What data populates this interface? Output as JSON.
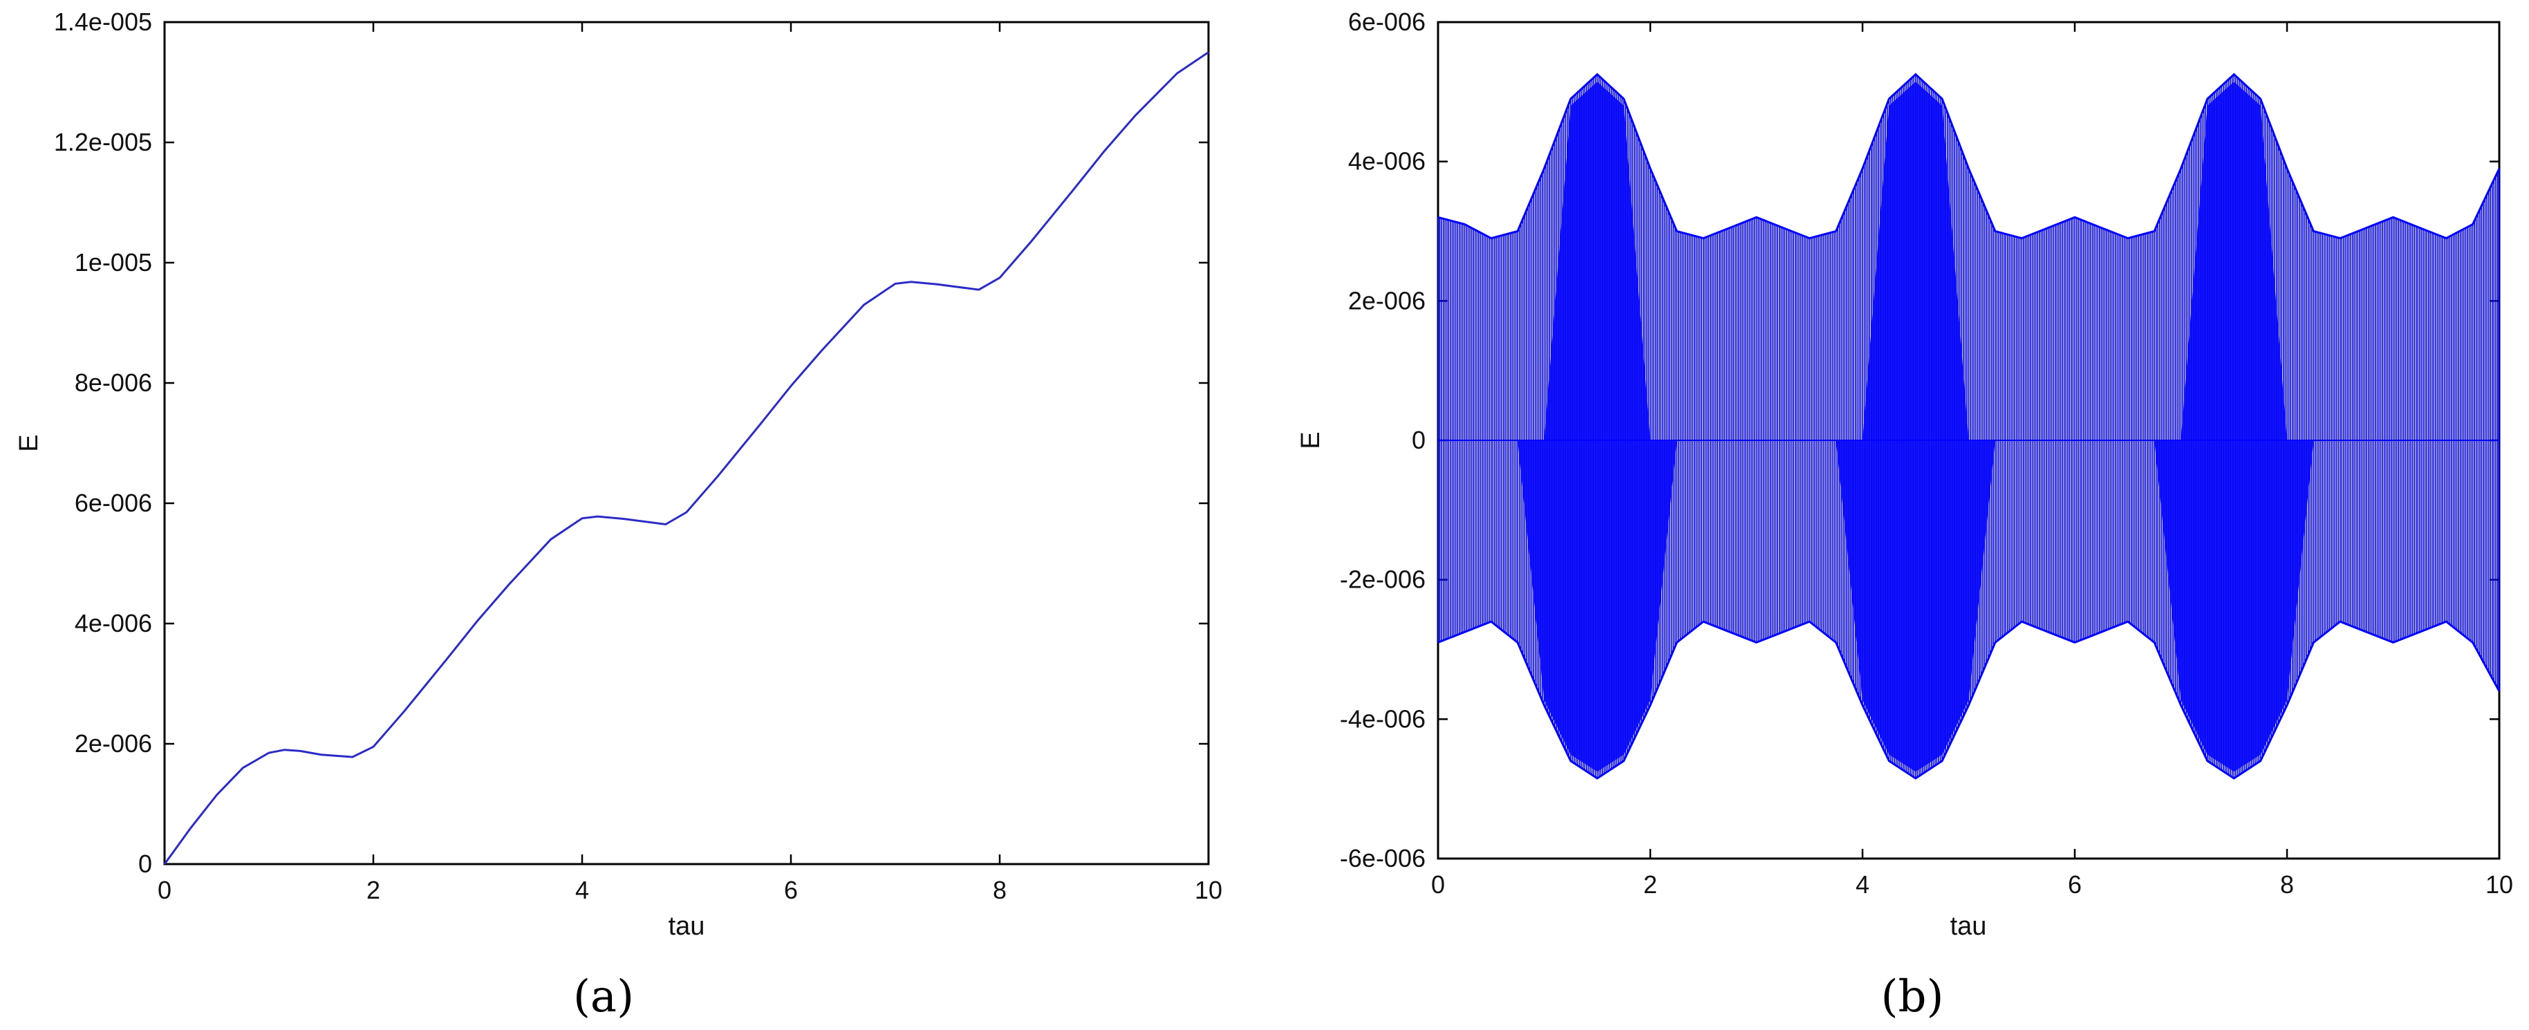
{
  "chart_data": [
    {
      "type": "line",
      "panel_label": "(a)",
      "xlabel": "tau",
      "ylabel": "E",
      "xlim": [
        0,
        10
      ],
      "ylim": [
        0,
        1.4e-05
      ],
      "x_ticks": [
        0,
        2,
        4,
        6,
        8,
        10
      ],
      "x_tick_labels": [
        "0",
        "2",
        "4",
        "6",
        "8",
        "10"
      ],
      "y_ticks": [
        0,
        2e-06,
        4e-06,
        6e-06,
        8e-06,
        1e-05,
        1.2e-05,
        1.4e-05
      ],
      "y_tick_labels": [
        "0",
        "2e-006",
        "4e-006",
        "6e-006",
        "8e-006",
        "1e-005",
        "1.2e-005",
        "1.4e-005"
      ],
      "grid": false,
      "color": "#2b2bc8",
      "series": [
        {
          "x": [
            0,
            0.25,
            0.5,
            0.75,
            1.0,
            1.15,
            1.3,
            1.5,
            1.8,
            2.0,
            2.3,
            2.7,
            3.0,
            3.3,
            3.7,
            4.0,
            4.15,
            4.4,
            4.8,
            5.0,
            5.3,
            5.7,
            6.0,
            6.3,
            6.7,
            7.0,
            7.15,
            7.4,
            7.8,
            8.0,
            8.3,
            8.7,
            9.0,
            9.3,
            9.7,
            10.0
          ],
          "y": [
            0,
            6e-07,
            1.15e-06,
            1.6e-06,
            1.85e-06,
            1.9e-06,
            1.88e-06,
            1.82e-06,
            1.78e-06,
            1.95e-06,
            2.55e-06,
            3.4e-06,
            4.05e-06,
            4.65e-06,
            5.4e-06,
            5.75e-06,
            5.78e-06,
            5.74e-06,
            5.65e-06,
            5.85e-06,
            6.45e-06,
            7.3e-06,
            7.95e-06,
            8.55e-06,
            9.3e-06,
            9.65e-06,
            9.68e-06,
            9.64e-06,
            9.55e-06,
            9.75e-06,
            1.035e-05,
            1.12e-05,
            1.185e-05,
            1.245e-05,
            1.315e-05,
            1.35e-05
          ]
        }
      ]
    },
    {
      "type": "line",
      "panel_label": "(b)",
      "xlabel": "tau",
      "ylabel": "E",
      "xlim": [
        0,
        10
      ],
      "ylim": [
        -6e-06,
        6e-06
      ],
      "x_ticks": [
        0,
        2,
        4,
        6,
        8,
        10
      ],
      "x_tick_labels": [
        "0",
        "2",
        "4",
        "6",
        "8",
        "10"
      ],
      "y_ticks": [
        -6e-06,
        -4e-06,
        -2e-06,
        0,
        2e-06,
        4e-06,
        6e-06
      ],
      "y_tick_labels": [
        "-6e-006",
        "-4e-006",
        "-2e-006",
        "0",
        "2e-006",
        "4e-006",
        "6e-006"
      ],
      "grid": false,
      "color": "#0000ff",
      "series": [
        {
          "x": [
            0,
            0.25,
            0.5,
            0.75,
            1.0,
            1.25,
            1.5,
            1.75,
            2.0,
            2.25,
            2.5,
            2.75,
            3.0,
            3.25,
            3.5,
            3.75,
            4.0,
            4.25,
            4.5,
            4.75,
            5.0,
            5.25,
            5.5,
            5.75,
            6.0,
            6.25,
            6.5,
            6.75,
            7.0,
            7.25,
            7.5,
            7.75,
            8.0,
            8.25,
            8.5,
            8.75,
            9.0,
            9.25,
            9.5,
            9.75,
            10.0
          ],
          "y_upper": [
            3.2e-06,
            3.1e-06,
            2.9e-06,
            3e-06,
            3.9e-06,
            4.9e-06,
            5.25e-06,
            4.9e-06,
            3.9e-06,
            3e-06,
            2.9e-06,
            3.05e-06,
            3.2e-06,
            3.05e-06,
            2.9e-06,
            3e-06,
            3.9e-06,
            4.9e-06,
            5.25e-06,
            4.9e-06,
            3.9e-06,
            3e-06,
            2.9e-06,
            3.05e-06,
            3.2e-06,
            3.05e-06,
            2.9e-06,
            3e-06,
            3.9e-06,
            4.9e-06,
            5.25e-06,
            4.9e-06,
            3.9e-06,
            3e-06,
            2.9e-06,
            3.05e-06,
            3.2e-06,
            3.05e-06,
            2.9e-06,
            3.1e-06,
            3.9e-06
          ],
          "y_lower": [
            -2.9e-06,
            -2.75e-06,
            -2.6e-06,
            -2.9e-06,
            -3.8e-06,
            -4.6e-06,
            -4.85e-06,
            -4.6e-06,
            -3.8e-06,
            -2.9e-06,
            -2.6e-06,
            -2.75e-06,
            -2.9e-06,
            -2.75e-06,
            -2.6e-06,
            -2.9e-06,
            -3.8e-06,
            -4.6e-06,
            -4.85e-06,
            -4.6e-06,
            -3.8e-06,
            -2.9e-06,
            -2.6e-06,
            -2.75e-06,
            -2.9e-06,
            -2.75e-06,
            -2.6e-06,
            -2.9e-06,
            -3.8e-06,
            -4.6e-06,
            -4.85e-06,
            -4.6e-06,
            -3.8e-06,
            -2.9e-06,
            -2.6e-06,
            -2.75e-06,
            -2.9e-06,
            -2.75e-06,
            -2.6e-06,
            -2.9e-06,
            -3.6e-06
          ]
        }
      ]
    }
  ]
}
